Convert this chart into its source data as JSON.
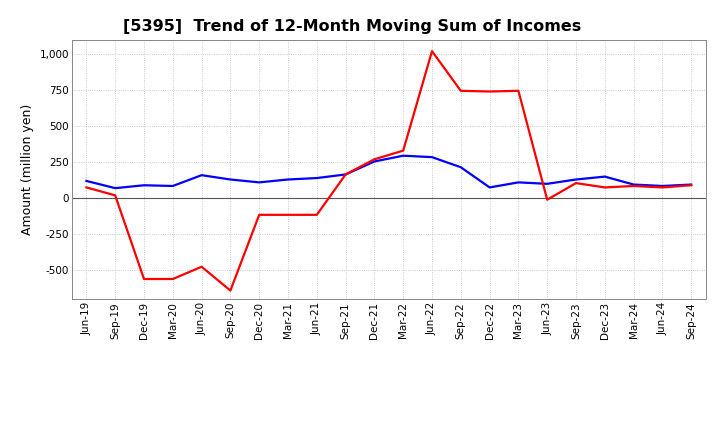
{
  "title": "[5395]  Trend of 12-Month Moving Sum of Incomes",
  "ylabel": "Amount (million yen)",
  "x_labels": [
    "Jun-19",
    "Sep-19",
    "Dec-19",
    "Mar-20",
    "Jun-20",
    "Sep-20",
    "Dec-20",
    "Mar-21",
    "Jun-21",
    "Sep-21",
    "Dec-21",
    "Mar-22",
    "Jun-22",
    "Sep-22",
    "Dec-22",
    "Mar-23",
    "Jun-23",
    "Sep-23",
    "Dec-23",
    "Mar-24",
    "Jun-24",
    "Sep-24"
  ],
  "ordinary_income": [
    120,
    70,
    90,
    85,
    160,
    130,
    110,
    130,
    140,
    165,
    255,
    295,
    285,
    215,
    75,
    110,
    100,
    130,
    150,
    95,
    85,
    95
  ],
  "net_income": [
    75,
    20,
    -560,
    -560,
    -475,
    -640,
    -115,
    -115,
    -115,
    165,
    270,
    330,
    1020,
    745,
    740,
    745,
    -10,
    105,
    75,
    85,
    75,
    90
  ],
  "ordinary_color": "#0000FF",
  "net_color": "#FF0000",
  "ylim": [
    -700,
    1100
  ],
  "yticks": [
    -500,
    -250,
    0,
    250,
    500,
    750,
    1000
  ],
  "background_color": "#FFFFFF",
  "grid_color": "#AAAAAA",
  "title_fontsize": 11.5,
  "axis_fontsize": 9,
  "tick_fontsize": 7.5,
  "legend_fontsize": 9,
  "linewidth": 1.6
}
